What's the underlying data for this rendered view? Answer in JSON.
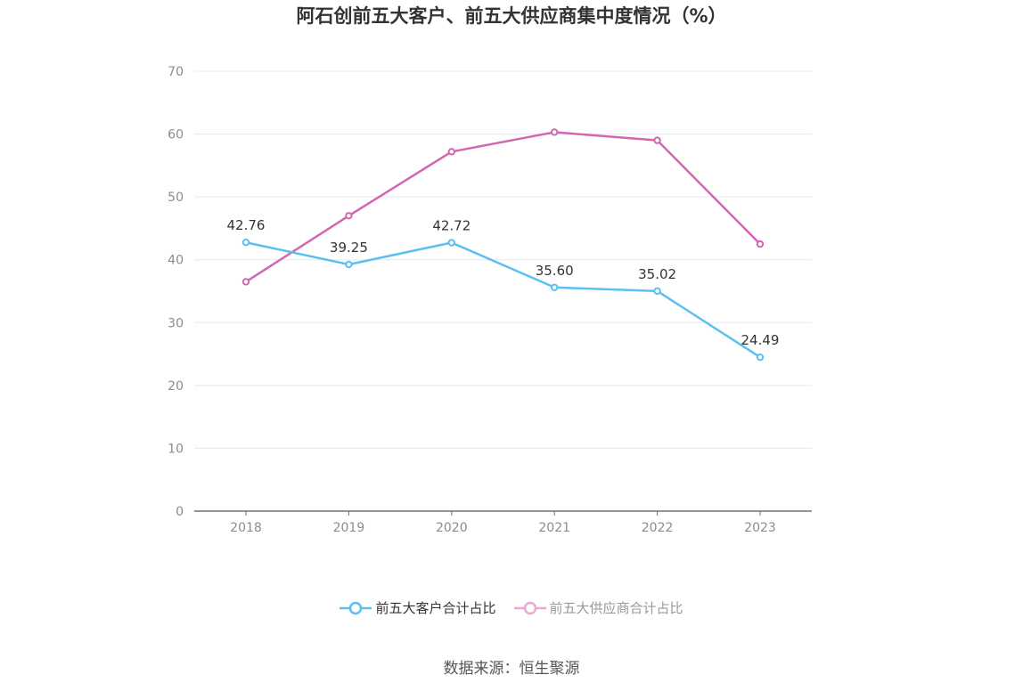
{
  "title": "阿石创前五大客户、前五大供应商集中度情况（%）",
  "source": "数据来源：恒生聚源",
  "colors": {
    "customers": "#5bc0f0",
    "suppliers": "#d466b0",
    "suppliers_legend": "#e9a9d6",
    "grid": "#e6e8f0",
    "axis": "#6e7079"
  },
  "chart_data": {
    "type": "line",
    "title": "阿石创前五大客户、前五大供应商集中度情况（%）",
    "categories": [
      "2018",
      "2019",
      "2020",
      "2021",
      "2022",
      "2023"
    ],
    "yticks": [
      "0",
      "10",
      "20",
      "30",
      "40",
      "50",
      "60",
      "70"
    ],
    "ylim": [
      0,
      70
    ],
    "grid": true,
    "legend_position": "bottom",
    "series": [
      {
        "name": "前五大客户合计占比",
        "values": [
          42.76,
          39.25,
          42.72,
          35.6,
          35.02,
          24.49
        ],
        "labels": [
          "42.76",
          "39.25",
          "42.72",
          "35.60",
          "35.02",
          "24.49"
        ],
        "show_labels": true
      },
      {
        "name": "前五大供应商合计占比",
        "values": [
          36.5,
          47.0,
          57.2,
          60.3,
          59.0,
          42.5
        ],
        "show_labels": false
      }
    ]
  }
}
